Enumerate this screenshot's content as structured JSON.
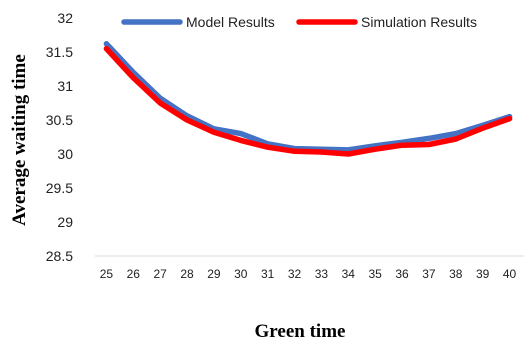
{
  "chart_data": {
    "type": "line",
    "title": "",
    "xlabel": "Green time",
    "ylabel": "Average waiting time",
    "categories": [
      "25",
      "26",
      "27",
      "28",
      "29",
      "30",
      "31",
      "32",
      "33",
      "34",
      "35",
      "36",
      "37",
      "38",
      "39",
      "40"
    ],
    "ylim": [
      28.5,
      32
    ],
    "yticks": [
      "28.5",
      "29",
      "29.5",
      "30",
      "30.5",
      "31",
      "31.5",
      "32"
    ],
    "grid": false,
    "legend_position": "top",
    "series": [
      {
        "name": "Model Results",
        "color": "#4472C4",
        "values": [
          31.62,
          31.2,
          30.82,
          30.56,
          30.37,
          30.3,
          30.15,
          30.08,
          30.07,
          30.06,
          30.12,
          30.17,
          30.23,
          30.3,
          30.42,
          30.55
        ]
      },
      {
        "name": "Simulation Results",
        "color": "#FF0000",
        "values": [
          31.55,
          31.12,
          30.75,
          30.5,
          30.32,
          30.2,
          30.1,
          30.04,
          30.03,
          30.0,
          30.07,
          30.13,
          30.14,
          30.22,
          30.38,
          30.52
        ]
      }
    ]
  }
}
